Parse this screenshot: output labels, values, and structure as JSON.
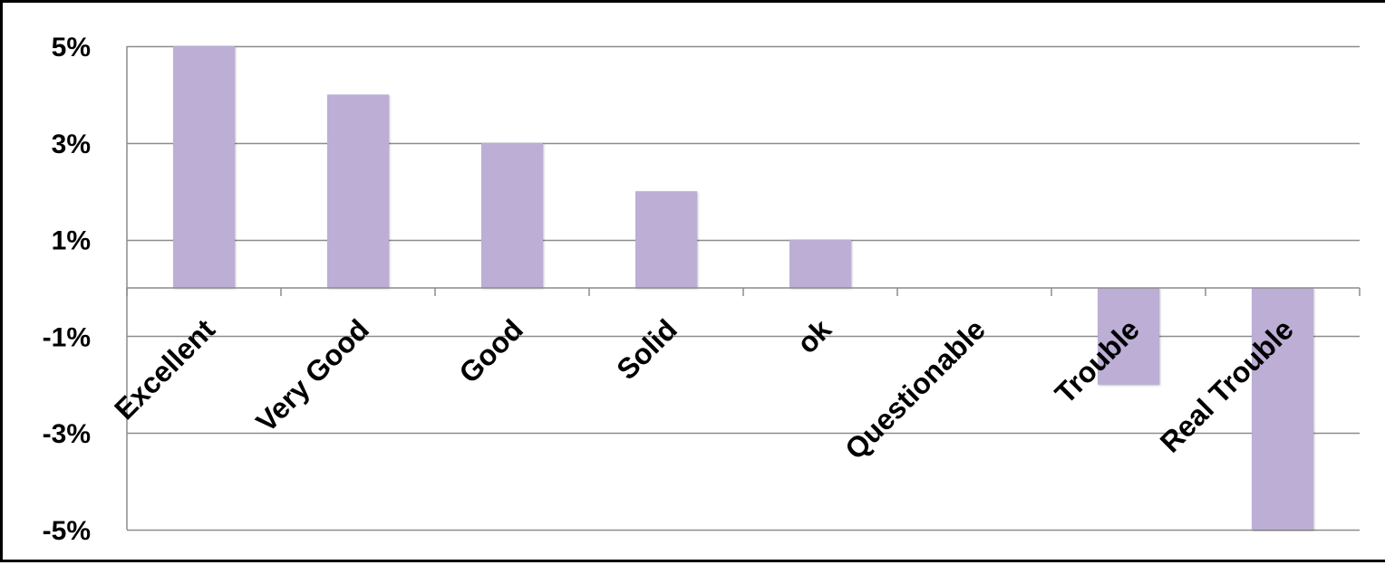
{
  "chart_data": {
    "type": "bar",
    "title": "",
    "xlabel": "",
    "ylabel": "",
    "categories": [
      "Excellent",
      "Very Good",
      "Good",
      "Solid",
      "ok",
      "Questionable",
      "Trouble",
      "Real Trouble"
    ],
    "values": [
      5,
      4,
      3,
      2,
      1,
      0,
      -2,
      -5
    ],
    "unit": "%",
    "ylim": [
      -5,
      5
    ],
    "yticks": [
      5,
      3,
      1,
      -1,
      -3,
      -5
    ],
    "ytick_labels": [
      "5%",
      "3%",
      "1%",
      "-1%",
      "-3%",
      "-5%"
    ],
    "grid": true,
    "legend": "none",
    "bar_color": "#BCAED5",
    "gridline_color": "#8C8C8C"
  }
}
